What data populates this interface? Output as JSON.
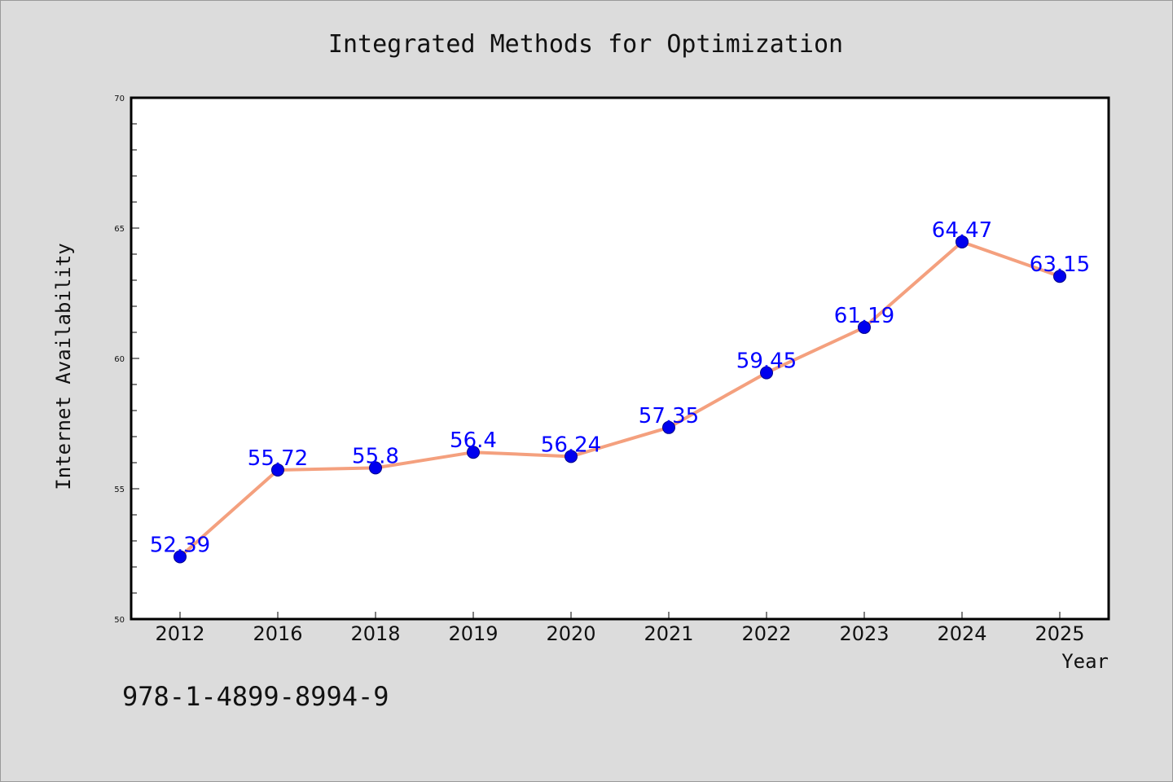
{
  "chart_data": {
    "type": "line",
    "title": "Integrated Methods for Optimization",
    "xlabel": "Year",
    "ylabel": "Internet Availability",
    "categories": [
      "2012",
      "2016",
      "2018",
      "2019",
      "2020",
      "2021",
      "2022",
      "2023",
      "2024",
      "2025"
    ],
    "values": [
      52.39,
      55.72,
      55.8,
      56.4,
      56.24,
      57.35,
      59.45,
      61.19,
      64.47,
      63.15
    ],
    "data_labels": [
      "52.39",
      "55.72",
      "55.8",
      "56.4",
      "56.24",
      "57.35",
      "59.45",
      "61.19",
      "64.47",
      "63.15"
    ],
    "ylim": [
      50,
      70
    ],
    "yticks": [
      50,
      55,
      60,
      65,
      70
    ],
    "ytick_labels": [
      "50",
      "55",
      "60",
      "65",
      "70"
    ],
    "grid": false,
    "legend": "none",
    "colors": {
      "line": "#f4a07e",
      "marker": "#0000ee",
      "label": "#0000ff",
      "plot_background": "#ffffff",
      "figure_background": "#dcdcdc"
    }
  },
  "annotation": {
    "isbn": "978-1-4899-8994-9"
  }
}
